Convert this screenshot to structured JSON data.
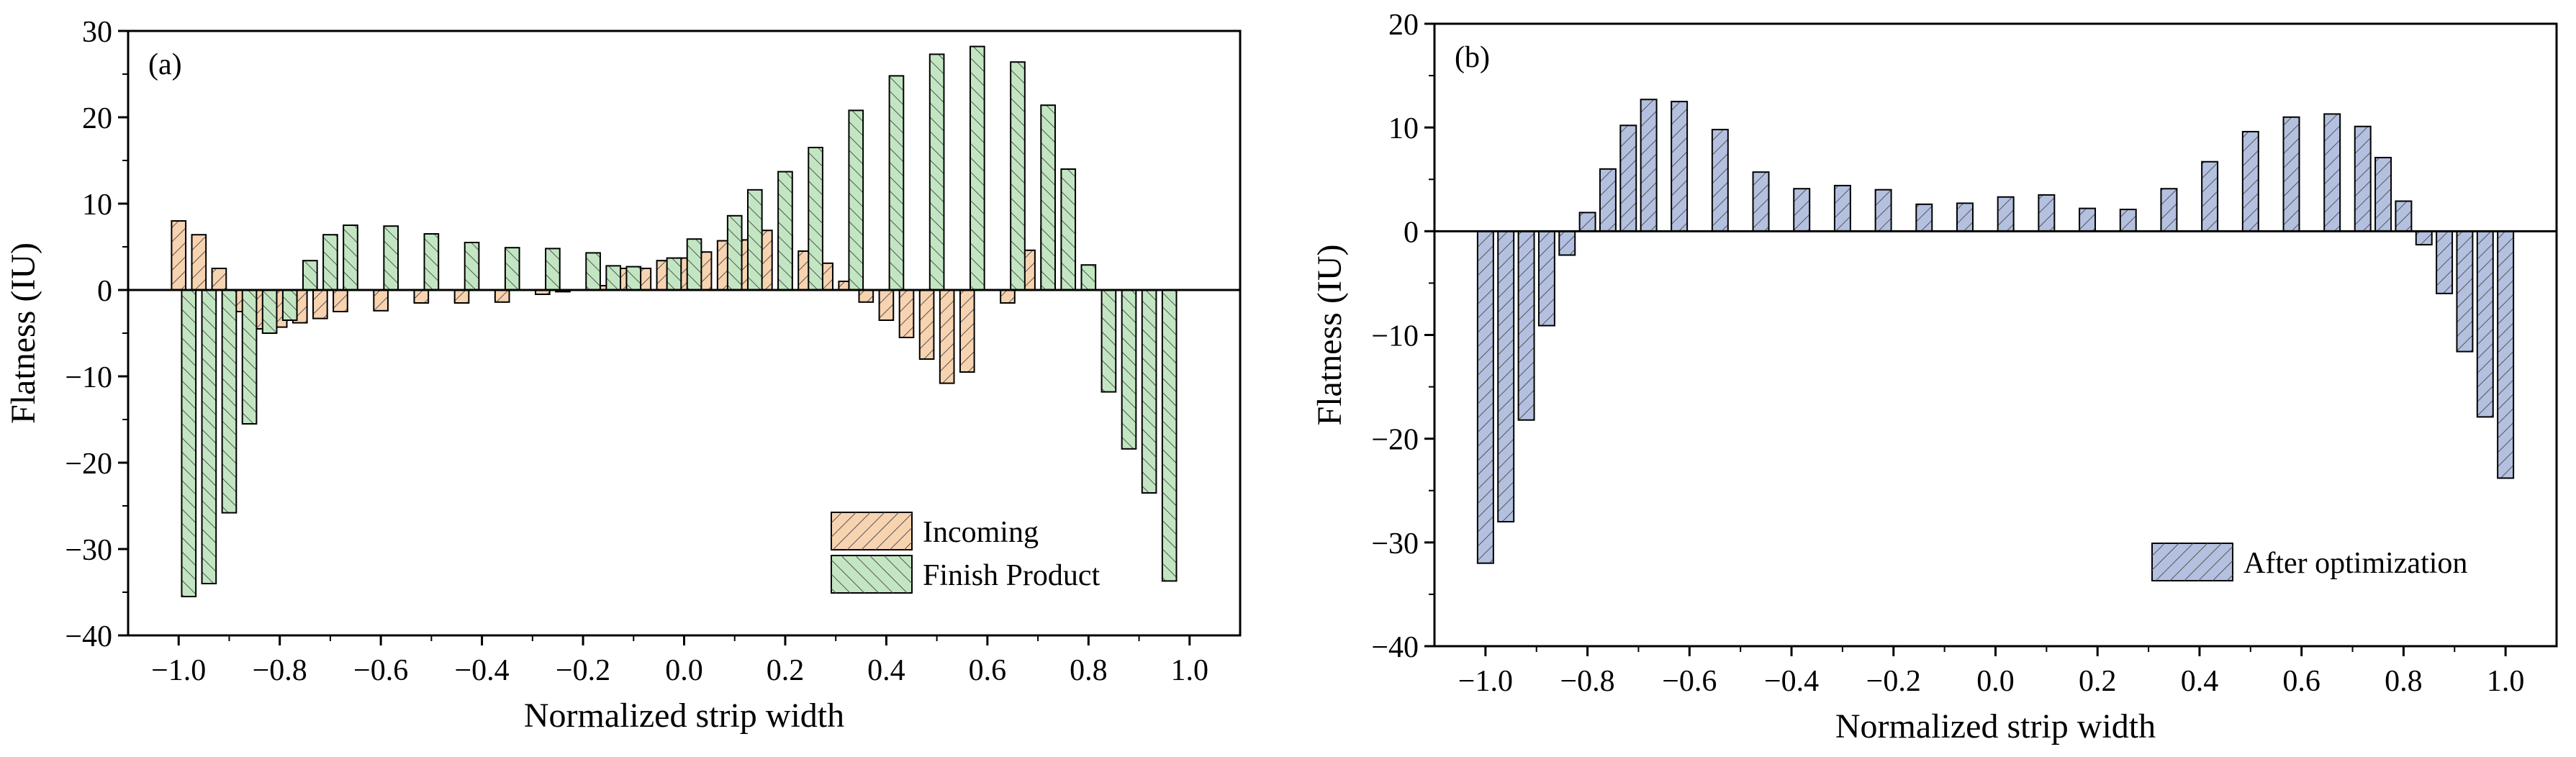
{
  "chart_data": [
    {
      "type": "bar",
      "panel_label": "(a)",
      "xlabel": "Normalized strip width",
      "ylabel": "Flatness (IU)",
      "xlim": [
        -1.1,
        1.1
      ],
      "ylim": [
        -40,
        30
      ],
      "xticks": [
        -1.0,
        -0.8,
        -0.6,
        -0.4,
        -0.2,
        0.0,
        0.2,
        0.4,
        0.6,
        0.8,
        1.0
      ],
      "yticks": [
        -40,
        -30,
        -20,
        -10,
        0,
        10,
        20,
        30
      ],
      "xtick_labels": [
        "−1.0",
        "−0.8",
        "−0.6",
        "−0.4",
        "−0.2",
        "0.0",
        "0.2",
        "0.4",
        "0.6",
        "0.8",
        "1.0"
      ],
      "ytick_labels": [
        "−40",
        "−30",
        "−20",
        "−10",
        "0",
        "10",
        "20",
        "30"
      ],
      "legend_position": "bottom-right",
      "series": [
        {
          "name": "Incoming",
          "color": "#F8D3B0",
          "hatch": "forward",
          "x": [
            -1.0,
            -0.96,
            -0.92,
            -0.88,
            -0.84,
            -0.8,
            -0.76,
            -0.72,
            -0.68,
            -0.6,
            -0.52,
            -0.44,
            -0.36,
            -0.28,
            -0.24,
            -0.2,
            -0.16,
            -0.12,
            -0.08,
            -0.04,
            0.0,
            0.04,
            0.08,
            0.12,
            0.16,
            0.2,
            0.24,
            0.28,
            0.32,
            0.36,
            0.4,
            0.44,
            0.48,
            0.52,
            0.56,
            0.64,
            0.68,
            0.72,
            0.76,
            0.8,
            0.84,
            0.88,
            0.92,
            0.96,
            1.0
          ],
          "values": [
            8.0,
            6.4,
            2.5,
            -2.5,
            -4.5,
            -4.3,
            -3.8,
            -3.3,
            -2.5,
            -2.4,
            -1.5,
            -1.5,
            -1.4,
            -0.5,
            -0.2,
            0.0,
            0.5,
            2.5,
            2.5,
            3.4,
            3.7,
            4.4,
            5.7,
            5.8,
            6.9,
            6.3,
            4.5,
            3.1,
            1.0,
            -1.4,
            -3.5,
            -5.5,
            -8.0,
            -10.8,
            -9.5,
            -1.5,
            4.6,
            7.3,
            0,
            0,
            0,
            0,
            0,
            0,
            0
          ]
        },
        {
          "name": "Finish Product",
          "color": "#C3E6C2",
          "hatch": "backward",
          "x": [
            -0.98,
            -0.94,
            -0.9,
            -0.86,
            -0.82,
            -0.78,
            -0.74,
            -0.7,
            -0.66,
            -0.58,
            -0.5,
            -0.42,
            -0.34,
            -0.26,
            -0.18,
            -0.14,
            -0.1,
            -0.02,
            0.02,
            0.1,
            0.14,
            0.2,
            0.26,
            0.34,
            0.42,
            0.5,
            0.58,
            0.66,
            0.72,
            0.76,
            0.8,
            0.84,
            0.88,
            0.92,
            0.96,
            1.0
          ],
          "values": [
            -35.5,
            -34.0,
            -25.8,
            -15.5,
            -5.0,
            -3.5,
            3.4,
            6.4,
            7.5,
            7.4,
            6.5,
            5.5,
            4.9,
            4.8,
            4.3,
            2.8,
            2.7,
            3.7,
            5.9,
            8.6,
            11.6,
            13.7,
            16.5,
            20.8,
            24.8,
            27.3,
            28.2,
            26.4,
            21.4,
            14.0,
            2.9,
            -11.8,
            -18.4,
            -23.5,
            -33.7,
            0
          ]
        }
      ]
    },
    {
      "type": "bar",
      "panel_label": "(b)",
      "xlabel": "Normalized strip width",
      "ylabel": "Flatness (IU)",
      "xlim": [
        -1.1,
        1.1
      ],
      "ylim": [
        -40,
        20
      ],
      "xticks": [
        -1.0,
        -0.8,
        -0.6,
        -0.4,
        -0.2,
        0.0,
        0.2,
        0.4,
        0.6,
        0.8,
        1.0
      ],
      "yticks": [
        -40,
        -30,
        -20,
        -10,
        0,
        10,
        20
      ],
      "xtick_labels": [
        "−1.0",
        "−0.8",
        "−0.6",
        "−0.4",
        "−0.2",
        "0.0",
        "0.2",
        "0.4",
        "0.6",
        "0.8",
        "1.0"
      ],
      "ytick_labels": [
        "−40",
        "−30",
        "−20",
        "−10",
        "0",
        "10",
        "20"
      ],
      "legend_position": "bottom-right",
      "series": [
        {
          "name": "After optimization",
          "color": "#B4C0DF",
          "hatch": "forward",
          "x": [
            -1.0,
            -0.96,
            -0.92,
            -0.88,
            -0.84,
            -0.8,
            -0.76,
            -0.72,
            -0.68,
            -0.62,
            -0.54,
            -0.46,
            -0.38,
            -0.3,
            -0.22,
            -0.14,
            -0.06,
            0.02,
            0.1,
            0.18,
            0.26,
            0.34,
            0.42,
            0.5,
            0.58,
            0.66,
            0.72,
            0.76,
            0.8,
            0.84,
            0.88,
            0.92,
            0.96,
            1.0
          ],
          "values": [
            -32.0,
            -28.0,
            -18.2,
            -9.1,
            -2.3,
            1.8,
            6.0,
            10.2,
            12.7,
            12.5,
            9.8,
            5.7,
            4.1,
            4.4,
            4.0,
            2.6,
            2.7,
            3.3,
            3.5,
            2.2,
            2.1,
            4.1,
            6.7,
            9.6,
            11.0,
            11.3,
            10.1,
            7.1,
            2.9,
            -1.3,
            -6.0,
            -11.6,
            -17.9,
            -23.8
          ]
        }
      ]
    }
  ]
}
